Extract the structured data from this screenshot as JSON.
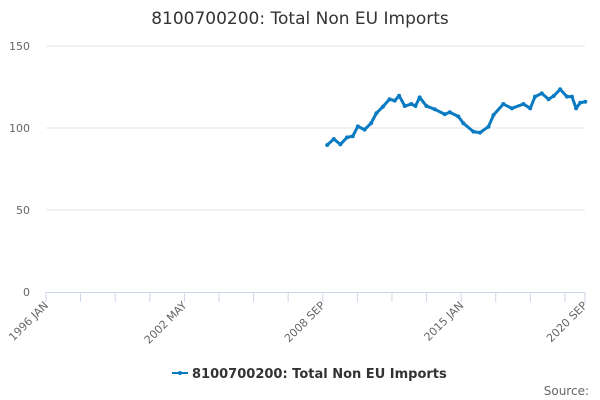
{
  "chart_data": {
    "type": "line",
    "title": "8100700200: Total Non EU Imports",
    "xlabel": "",
    "ylabel": "",
    "xlim": [
      1996.0,
      2020.667
    ],
    "ylim": [
      0,
      150
    ],
    "yticks": [
      0,
      50,
      100,
      150
    ],
    "xtick_labels": [
      {
        "label": "1996 JAN",
        "x": 1996.0
      },
      {
        "label": "2002 MAY",
        "x": 2002.333
      },
      {
        "label": "2008 SEP",
        "x": 2008.667
      },
      {
        "label": "2015 JAN",
        "x": 2015.0
      },
      {
        "label": "2020 SEP",
        "x": 2020.667
      }
    ],
    "minor_tick_step_years": 1.5833,
    "grid": true,
    "legend": "bottom-center",
    "color": "#0b7bc1",
    "series": [
      {
        "name": "8100700200: Total Non EU Imports",
        "x": [
          2008.87,
          2009.17,
          2009.47,
          2009.78,
          2010.04,
          2010.27,
          2010.58,
          2010.88,
          2011.12,
          2011.42,
          2011.72,
          2011.96,
          2012.16,
          2012.42,
          2012.72,
          2012.91,
          2013.1,
          2013.41,
          2013.79,
          2014.25,
          2014.48,
          2014.87,
          2015.1,
          2015.56,
          2015.86,
          2016.25,
          2016.48,
          2016.93,
          2017.32,
          2017.85,
          2018.16,
          2018.38,
          2018.69,
          2019.0,
          2019.23,
          2019.53,
          2019.84,
          2020.07,
          2020.26,
          2020.45,
          2020.68
        ],
        "values": [
          89.6,
          93.3,
          90.0,
          94.3,
          95.0,
          101.0,
          99.0,
          103.0,
          109.0,
          113.0,
          117.5,
          116.7,
          119.7,
          113.4,
          114.6,
          113.4,
          118.7,
          113.4,
          111.4,
          108.4,
          109.6,
          107.0,
          102.9,
          97.8,
          97.2,
          100.8,
          107.9,
          114.6,
          112.0,
          114.6,
          112.0,
          119.1,
          121.1,
          117.5,
          119.5,
          123.6,
          119.1,
          119.1,
          112.0,
          115.4,
          116.0
        ]
      }
    ]
  },
  "footer": {
    "source_label": "Source:"
  }
}
